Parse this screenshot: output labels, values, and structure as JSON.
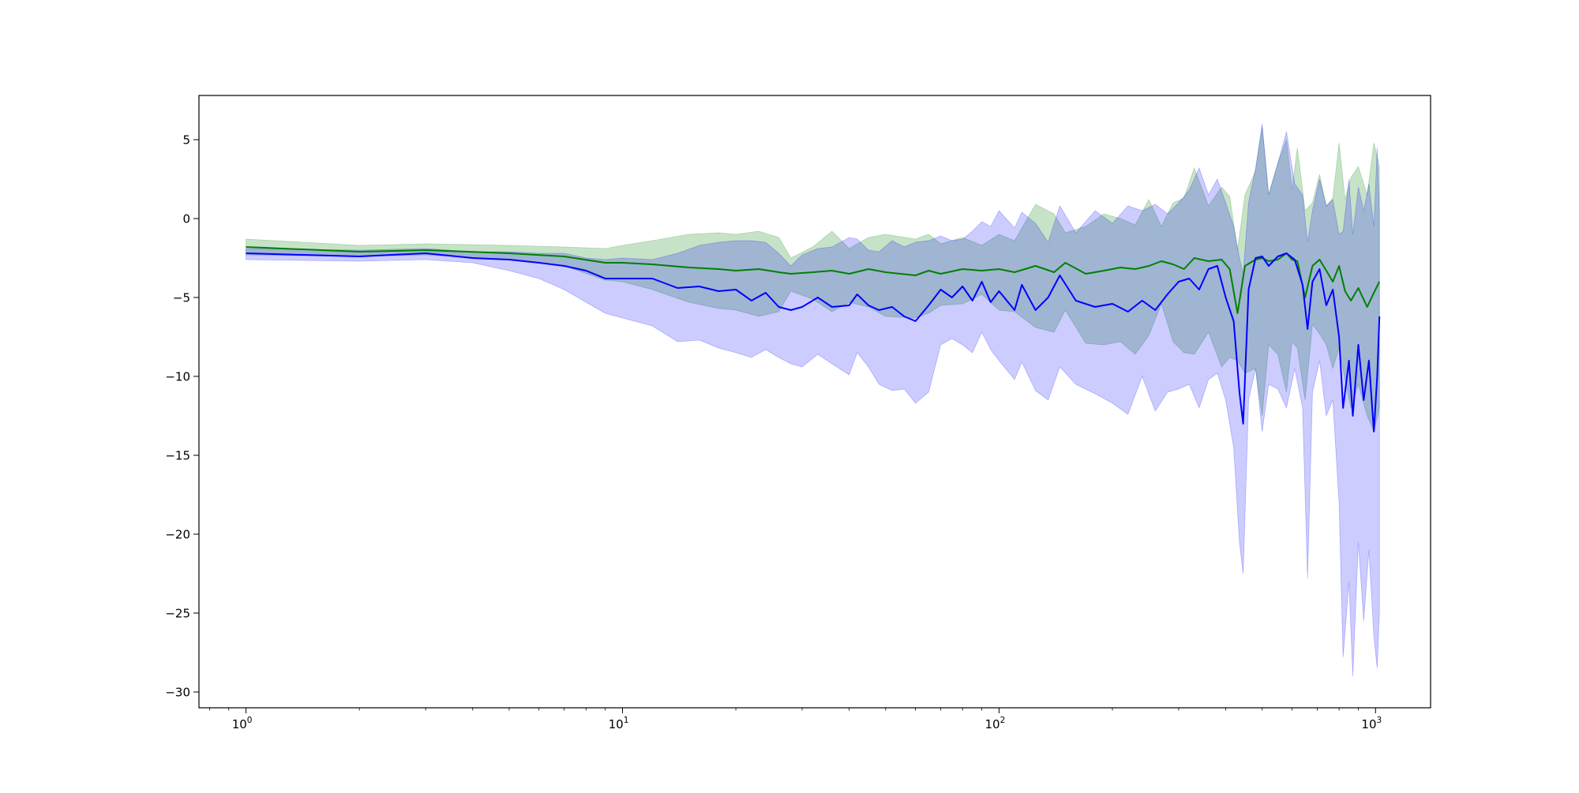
{
  "chart_data": {
    "type": "line",
    "title": "",
    "xlabel": "",
    "ylabel": "",
    "xscale": "log",
    "xlim": [
      0.75,
      1400
    ],
    "ylim": [
      -31,
      7.8
    ],
    "grid": false,
    "x_ticks": [
      {
        "value": 1,
        "base": "10",
        "exp": "0"
      },
      {
        "value": 10,
        "base": "10",
        "exp": "1"
      },
      {
        "value": 100,
        "base": "10",
        "exp": "2"
      },
      {
        "value": 1000,
        "base": "10",
        "exp": "3"
      }
    ],
    "y_ticks": [
      {
        "value": 5,
        "label": "5"
      },
      {
        "value": 0,
        "label": "0"
      },
      {
        "value": -5,
        "label": "−5"
      },
      {
        "value": -10,
        "label": "−10"
      },
      {
        "value": -15,
        "label": "−15"
      },
      {
        "value": -20,
        "label": "−20"
      },
      {
        "value": -25,
        "label": "−25"
      },
      {
        "value": -30,
        "label": "−30"
      }
    ],
    "series": [
      {
        "color": "#008000",
        "band_color": "#008000",
        "band_opacity": 0.22,
        "points": [
          [
            1,
            -1.8,
            -1.3,
            -2.3
          ],
          [
            2,
            -2.1,
            -1.7,
            -2.4
          ],
          [
            3,
            -2.0,
            -1.6,
            -2.3
          ],
          [
            5,
            -2.2,
            -1.7,
            -2.6
          ],
          [
            7,
            -2.4,
            -1.8,
            -3.0
          ],
          [
            9,
            -2.8,
            -1.9,
            -3.9
          ],
          [
            10,
            -2.8,
            -1.7,
            -4.0
          ],
          [
            12,
            -2.9,
            -1.4,
            -4.5
          ],
          [
            15,
            -3.1,
            -1.0,
            -5.3
          ],
          [
            18,
            -3.2,
            -0.9,
            -5.7
          ],
          [
            20,
            -3.3,
            -1.0,
            -5.8
          ],
          [
            23,
            -3.2,
            -0.8,
            -6.2
          ],
          [
            26,
            -3.4,
            -1.2,
            -5.9
          ],
          [
            28,
            -3.5,
            -2.5,
            -4.6
          ],
          [
            32,
            -3.4,
            -1.8,
            -5.1
          ],
          [
            36,
            -3.3,
            -0.8,
            -5.9
          ],
          [
            40,
            -3.5,
            -1.9,
            -5.3
          ],
          [
            45,
            -3.2,
            -1.2,
            -5.6
          ],
          [
            50,
            -3.4,
            -1.0,
            -6.2
          ],
          [
            60,
            -3.6,
            -1.3,
            -6.3
          ],
          [
            65,
            -3.3,
            -1.0,
            -6.0
          ],
          [
            70,
            -3.5,
            -1.6,
            -5.5
          ],
          [
            80,
            -3.2,
            -1.2,
            -5.4
          ],
          [
            90,
            -3.3,
            -1.7,
            -4.8
          ],
          [
            100,
            -3.2,
            -1.0,
            -5.8
          ],
          [
            110,
            -3.4,
            -1.4,
            -5.9
          ],
          [
            125,
            -3.0,
            0.9,
            -6.9
          ],
          [
            140,
            -3.4,
            0.3,
            -7.2
          ],
          [
            150,
            -2.8,
            -0.9,
            -5.8
          ],
          [
            170,
            -3.5,
            -0.5,
            -7.9
          ],
          [
            190,
            -3.3,
            0.3,
            -8.0
          ],
          [
            210,
            -3.1,
            0.0,
            -7.8
          ],
          [
            230,
            -3.2,
            -0.4,
            -8.6
          ],
          [
            250,
            -3.0,
            1.2,
            -7.4
          ],
          [
            270,
            -2.7,
            -0.5,
            -5.4
          ],
          [
            290,
            -2.9,
            1.0,
            -7.8
          ],
          [
            310,
            -3.2,
            1.3,
            -8.5
          ],
          [
            330,
            -2.5,
            3.2,
            -8.6
          ],
          [
            360,
            -2.7,
            0.8,
            -7.2
          ],
          [
            390,
            -2.6,
            2.0,
            -9.4
          ],
          [
            410,
            -3.2,
            1.4,
            -8.8
          ],
          [
            430,
            -6.0,
            -2.0,
            -9.0
          ],
          [
            450,
            -3.0,
            1.5,
            -9.8
          ],
          [
            480,
            -2.6,
            3.0,
            -9.5
          ],
          [
            500,
            -2.5,
            5.8,
            -12.5
          ],
          [
            520,
            -2.7,
            1.5,
            -8.0
          ],
          [
            550,
            -2.6,
            3.5,
            -8.6
          ],
          [
            580,
            -2.2,
            5.0,
            -11.0
          ],
          [
            600,
            -2.6,
            1.8,
            -7.8
          ],
          [
            620,
            -2.7,
            4.5,
            -8.2
          ],
          [
            650,
            -5.0,
            0.5,
            -11.5
          ],
          [
            680,
            -3.0,
            1.0,
            -6.7
          ],
          [
            710,
            -2.6,
            2.8,
            -7.3
          ],
          [
            740,
            -3.3,
            0.8,
            -8.0
          ],
          [
            770,
            -4.0,
            1.3,
            -9.5
          ],
          [
            800,
            -3.0,
            4.8,
            -8.2
          ],
          [
            830,
            -4.6,
            1.2,
            -10.2
          ],
          [
            860,
            -5.2,
            2.6,
            -12.0
          ],
          [
            900,
            -4.4,
            3.3,
            -10.5
          ],
          [
            950,
            -5.6,
            1.5,
            -12.5
          ],
          [
            990,
            -4.7,
            4.8,
            -13.5
          ],
          [
            1024,
            -4.0,
            3.3,
            -12.0
          ]
        ]
      },
      {
        "color": "#0000ff",
        "band_color": "#0000ff",
        "band_opacity": 0.2,
        "points": [
          [
            1,
            -2.2,
            -1.9,
            -2.6
          ],
          [
            2,
            -2.4,
            -2.0,
            -2.7
          ],
          [
            3,
            -2.2,
            -1.9,
            -2.6
          ],
          [
            4,
            -2.5,
            -2.1,
            -2.8
          ],
          [
            5,
            -2.6,
            -2.1,
            -3.3
          ],
          [
            6,
            -2.8,
            -2.2,
            -3.8
          ],
          [
            7,
            -3.0,
            -2.2,
            -4.5
          ],
          [
            8,
            -3.3,
            -2.5,
            -5.3
          ],
          [
            9,
            -3.8,
            -2.6,
            -6.0
          ],
          [
            10,
            -3.8,
            -2.5,
            -6.3
          ],
          [
            12,
            -3.8,
            -2.6,
            -6.8
          ],
          [
            14,
            -4.4,
            -2.2,
            -7.8
          ],
          [
            16,
            -4.3,
            -1.7,
            -7.7
          ],
          [
            18,
            -4.6,
            -1.5,
            -8.2
          ],
          [
            20,
            -4.5,
            -1.4,
            -8.5
          ],
          [
            22,
            -5.2,
            -1.4,
            -8.8
          ],
          [
            24,
            -4.7,
            -1.5,
            -8.3
          ],
          [
            26,
            -5.6,
            -2.2,
            -8.8
          ],
          [
            28,
            -5.8,
            -3.0,
            -9.2
          ],
          [
            30,
            -5.6,
            -2.3,
            -9.4
          ],
          [
            33,
            -5.0,
            -1.9,
            -8.6
          ],
          [
            36,
            -5.6,
            -1.8,
            -9.2
          ],
          [
            40,
            -5.5,
            -1.2,
            -9.9
          ],
          [
            42,
            -4.8,
            -1.3,
            -8.5
          ],
          [
            45,
            -5.5,
            -2.0,
            -9.4
          ],
          [
            48,
            -5.8,
            -2.1,
            -10.5
          ],
          [
            52,
            -5.6,
            -1.4,
            -10.9
          ],
          [
            56,
            -6.2,
            -1.8,
            -10.8
          ],
          [
            60,
            -6.5,
            -1.5,
            -11.7
          ],
          [
            65,
            -5.5,
            -1.4,
            -11.0
          ],
          [
            70,
            -4.5,
            -1.1,
            -8.0
          ],
          [
            75,
            -5.0,
            -1.4,
            -7.6
          ],
          [
            80,
            -4.3,
            -1.3,
            -8.0
          ],
          [
            85,
            -5.2,
            -0.8,
            -8.5
          ],
          [
            90,
            -4.0,
            -0.2,
            -7.2
          ],
          [
            95,
            -5.3,
            -0.5,
            -8.3
          ],
          [
            100,
            -4.6,
            0.5,
            -9.0
          ],
          [
            110,
            -5.8,
            -0.6,
            -10.2
          ],
          [
            115,
            -4.2,
            0.4,
            -9.1
          ],
          [
            125,
            -5.8,
            -0.3,
            -10.9
          ],
          [
            135,
            -5.0,
            -1.5,
            -11.5
          ],
          [
            145,
            -3.6,
            0.8,
            -9.4
          ],
          [
            160,
            -5.2,
            -0.9,
            -10.5
          ],
          [
            180,
            -5.6,
            0.5,
            -11.1
          ],
          [
            200,
            -5.4,
            -0.3,
            -11.7
          ],
          [
            220,
            -5.9,
            0.8,
            -12.4
          ],
          [
            240,
            -5.2,
            0.5,
            -10.0
          ],
          [
            260,
            -5.8,
            0.9,
            -12.2
          ],
          [
            280,
            -4.8,
            0.3,
            -11.0
          ],
          [
            300,
            -4.0,
            1.0,
            -10.8
          ],
          [
            320,
            -3.8,
            1.8,
            -10.5
          ],
          [
            340,
            -4.5,
            3.2,
            -12.0
          ],
          [
            360,
            -3.2,
            1.5,
            -10.2
          ],
          [
            380,
            -3.0,
            2.5,
            -9.8
          ],
          [
            400,
            -5.0,
            1.0,
            -11.5
          ],
          [
            420,
            -6.5,
            -0.5,
            -14.5
          ],
          [
            435,
            -11.0,
            -2.5,
            -20.5
          ],
          [
            445,
            -13.0,
            -3.5,
            -22.5
          ],
          [
            460,
            -4.5,
            1.0,
            -11.5
          ],
          [
            480,
            -2.5,
            3.2,
            -9.5
          ],
          [
            500,
            -2.4,
            6.0,
            -13.5
          ],
          [
            520,
            -3.0,
            1.5,
            -10.5
          ],
          [
            550,
            -2.4,
            3.5,
            -10.8
          ],
          [
            580,
            -2.2,
            5.5,
            -12.0
          ],
          [
            610,
            -2.6,
            2.2,
            -9.5
          ],
          [
            640,
            -4.2,
            1.5,
            -12.0
          ],
          [
            660,
            -7.0,
            -1.5,
            -22.8
          ],
          [
            680,
            -4.0,
            0.5,
            -11.0
          ],
          [
            710,
            -3.2,
            2.5,
            -9.0
          ],
          [
            740,
            -5.5,
            0.8,
            -12.5
          ],
          [
            770,
            -4.5,
            1.2,
            -11.5
          ],
          [
            800,
            -7.5,
            -1.0,
            -18.0
          ],
          [
            820,
            -12.0,
            -0.8,
            -27.8
          ],
          [
            850,
            -9.0,
            2.5,
            -23.0
          ],
          [
            870,
            -12.5,
            -1.0,
            -29.0
          ],
          [
            900,
            -8.0,
            2.0,
            -20.5
          ],
          [
            930,
            -11.5,
            0.5,
            -25.5
          ],
          [
            960,
            -9.0,
            2.2,
            -21.0
          ],
          [
            990,
            -13.5,
            -0.5,
            -26.5
          ],
          [
            1010,
            -10.0,
            4.5,
            -28.5
          ],
          [
            1024,
            -6.2,
            0.5,
            -25.0
          ]
        ]
      }
    ]
  }
}
